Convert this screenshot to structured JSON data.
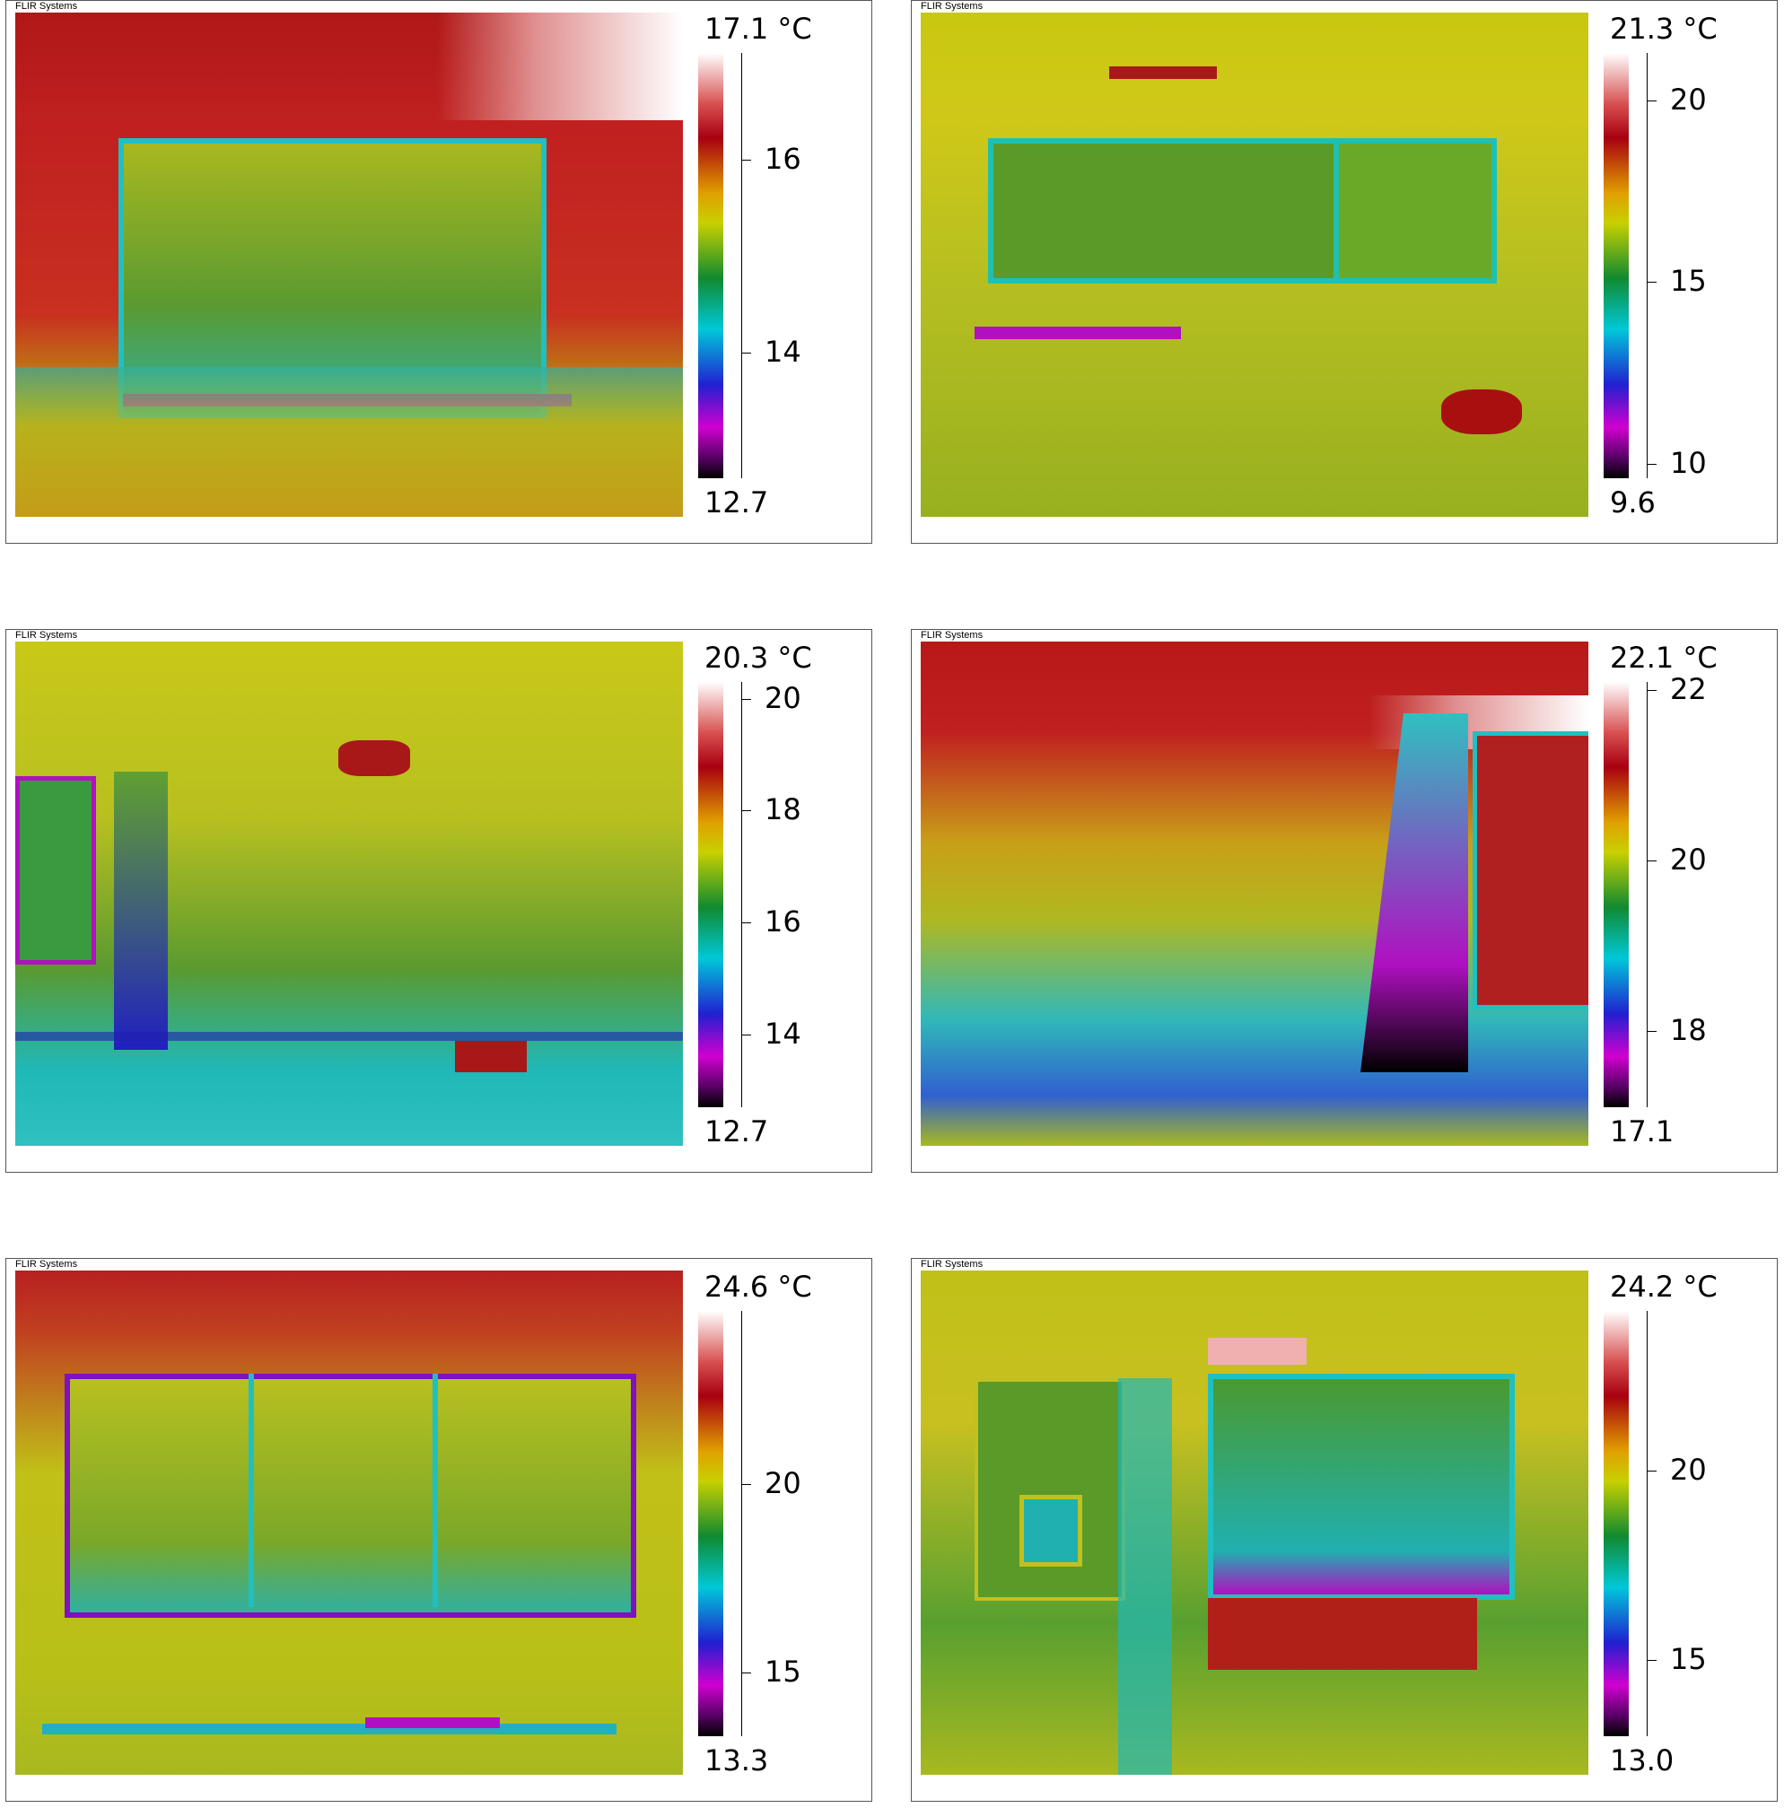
{
  "panels": [
    {
      "brand": "FLIR Systems",
      "colorbar": {
        "max": {
          "value": 17.1,
          "label": "17.1 °C"
        },
        "min": 12.7,
        "ticks": [
          14,
          16
        ]
      }
    },
    {
      "brand": "FLIR Systems",
      "colorbar": {
        "max": {
          "value": 21.3,
          "label": "21.3 °C"
        },
        "min": 9.6,
        "ticks": [
          10,
          15,
          20
        ]
      }
    },
    {
      "brand": "FLIR Systems",
      "colorbar": {
        "max": {
          "value": 20.3,
          "label": "20.3 °C"
        },
        "min": 12.7,
        "ticks": [
          14,
          16,
          18,
          20
        ]
      }
    },
    {
      "brand": "FLIR Systems",
      "colorbar": {
        "max": {
          "value": 22.1,
          "label": "22.1 °C"
        },
        "min": 17.1,
        "ticks": [
          18,
          20,
          22
        ]
      }
    },
    {
      "brand": "FLIR Systems",
      "colorbar": {
        "max": {
          "value": 24.6,
          "label": "24.6 °C"
        },
        "min": 13.3,
        "ticks": [
          15,
          20
        ]
      }
    },
    {
      "brand": "FLIR Systems",
      "colorbar": {
        "max": {
          "value": 24.2,
          "label": "24.2 °C"
        },
        "min": {
          "value": 13,
          "label": "13.0"
        },
        "ticks": [
          15,
          20
        ]
      }
    }
  ]
}
